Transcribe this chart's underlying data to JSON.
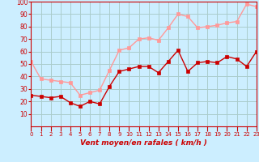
{
  "x": [
    0,
    1,
    2,
    3,
    4,
    5,
    6,
    7,
    8,
    9,
    10,
    11,
    12,
    13,
    14,
    15,
    16,
    17,
    18,
    19,
    20,
    21,
    22,
    23
  ],
  "vent_moyen": [
    25,
    24,
    23,
    24,
    19,
    16,
    20,
    18,
    32,
    44,
    46,
    48,
    48,
    43,
    52,
    61,
    44,
    51,
    52,
    51,
    56,
    54,
    48,
    60
  ],
  "rafales": [
    52,
    38,
    37,
    36,
    35,
    25,
    27,
    29,
    45,
    61,
    63,
    70,
    71,
    69,
    79,
    90,
    88,
    79,
    80,
    81,
    83,
    84,
    98,
    96
  ],
  "xlabel": "Vent moyen/en rafales ( km/h )",
  "ylim": [
    0,
    100
  ],
  "xlim": [
    0,
    23
  ],
  "yticks": [
    10,
    20,
    30,
    40,
    50,
    60,
    70,
    80,
    90,
    100
  ],
  "xticks": [
    0,
    1,
    2,
    3,
    4,
    5,
    6,
    7,
    8,
    9,
    10,
    11,
    12,
    13,
    14,
    15,
    16,
    17,
    18,
    19,
    20,
    21,
    22,
    23
  ],
  "bg_color": "#cceeff",
  "grid_color": "#aacccc",
  "line_moyen_color": "#cc0000",
  "line_rafales_color": "#ff9999",
  "marker_size": 2.5,
  "line_width": 1.0
}
